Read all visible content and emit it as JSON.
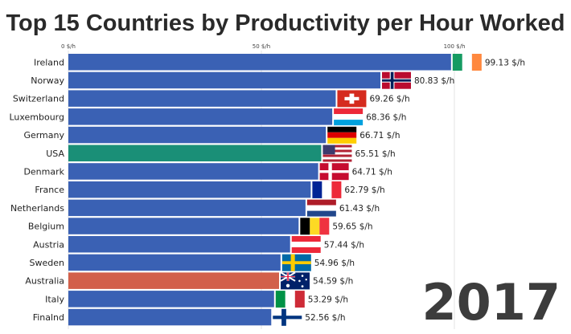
{
  "chart_data": {
    "type": "bar",
    "orientation": "horizontal",
    "title": "Top 15 Countries by Productivity per Hour Worked",
    "year": "2017",
    "xlim": [
      0,
      100
    ],
    "ticks": [
      {
        "value": 0,
        "label": "0 $/h"
      },
      {
        "value": 50,
        "label": "50 $/h"
      },
      {
        "value": 100,
        "label": "100 $/h"
      }
    ],
    "unit_suffix": " $/h",
    "categories": [
      "Ireland",
      "Norway",
      "Switzerland",
      "Luxembourg",
      "Germany",
      "USA",
      "Denmark",
      "France",
      "Netherlands",
      "Belgium",
      "Austria",
      "Sweden",
      "Australia",
      "Italy",
      "Finalnd"
    ],
    "values": [
      99.13,
      80.83,
      69.26,
      68.36,
      66.71,
      65.51,
      64.71,
      62.79,
      61.43,
      59.65,
      57.44,
      54.96,
      54.59,
      53.29,
      52.56
    ],
    "value_labels": [
      "99.13 $/h",
      "80.83 $/h",
      "69.26 $/h",
      "68.36 $/h",
      "66.71 $/h",
      "65.51 $/h",
      "64.71 $/h",
      "62.79 $/h",
      "61.43 $/h",
      "59.65 $/h",
      "57.44 $/h",
      "54.96 $/h",
      "54.59 $/h",
      "53.29 $/h",
      "52.56 $/h"
    ],
    "bar_colors": [
      "#3a61b4",
      "#3a61b4",
      "#3a61b4",
      "#3a61b4",
      "#3a61b4",
      "#1a8f77",
      "#3a61b4",
      "#3a61b4",
      "#3a61b4",
      "#3a61b4",
      "#3a61b4",
      "#3a61b4",
      "#d2604a",
      "#3a61b4",
      "#3a61b4"
    ],
    "flags": [
      "ireland-flag",
      "norway-flag",
      "switzerland-flag",
      "luxembourg-flag",
      "germany-flag",
      "usa-flag",
      "denmark-flag",
      "france-flag",
      "netherlands-flag",
      "belgium-flag",
      "austria-flag",
      "sweden-flag",
      "australia-flag",
      "italy-flag",
      "finland-flag"
    ]
  }
}
